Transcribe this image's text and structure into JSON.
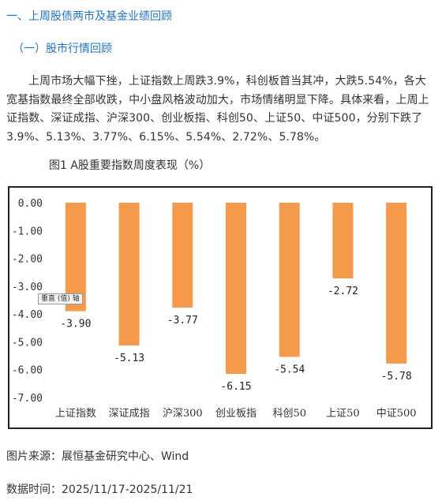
{
  "section": {
    "title": "一、上周股债两市及基金业绩回顾",
    "subtitle": "（一）股市行情回顾"
  },
  "paragraph": "上周市场大幅下挫，上证指数上周跌3.9%，科创板首当其冲，大跌5.54%，各大宽基指数最终全部收跌，中小盘风格波动加大，市场情绪明显下降。具体来看，上周上证指数、深证成指、沪深300、创业板指、科创50、上证50、中证500，分别下跌了3.9%、5.13%、3.77%、6.15%、5.54%、2.72%、5.78%。",
  "figure_caption": "图1 A股重要指数周度表现（%）",
  "tooltip": "垂直 (值) 轴",
  "source": "图片来源：展恒基金研究中心、Wind",
  "data_period": "数据时间：2025/11/17-2025/11/21",
  "colors": {
    "bar": "#f5994a",
    "heading": "#1f73c9",
    "text": "#333333"
  },
  "chart_data": {
    "type": "bar",
    "categories": [
      "上证指数",
      "深证成指",
      "沪深300",
      "创业板指",
      "科创50",
      "上证50",
      "中证500"
    ],
    "values": [
      -3.9,
      -5.13,
      -3.77,
      -6.15,
      -5.54,
      -2.72,
      -5.78
    ],
    "value_labels": [
      "-3.90",
      "-5.13",
      "-3.77",
      "-6.15",
      "-5.54",
      "-2.72",
      "-5.78"
    ],
    "y_ticks": [
      "0.00",
      "-1.00",
      "-2.00",
      "-3.00",
      "-4.00",
      "-5.00",
      "-6.00",
      "-7.00"
    ],
    "ylim": [
      -7,
      0
    ],
    "title": "",
    "xlabel": "",
    "ylabel": "",
    "grid": false,
    "legend": false
  }
}
